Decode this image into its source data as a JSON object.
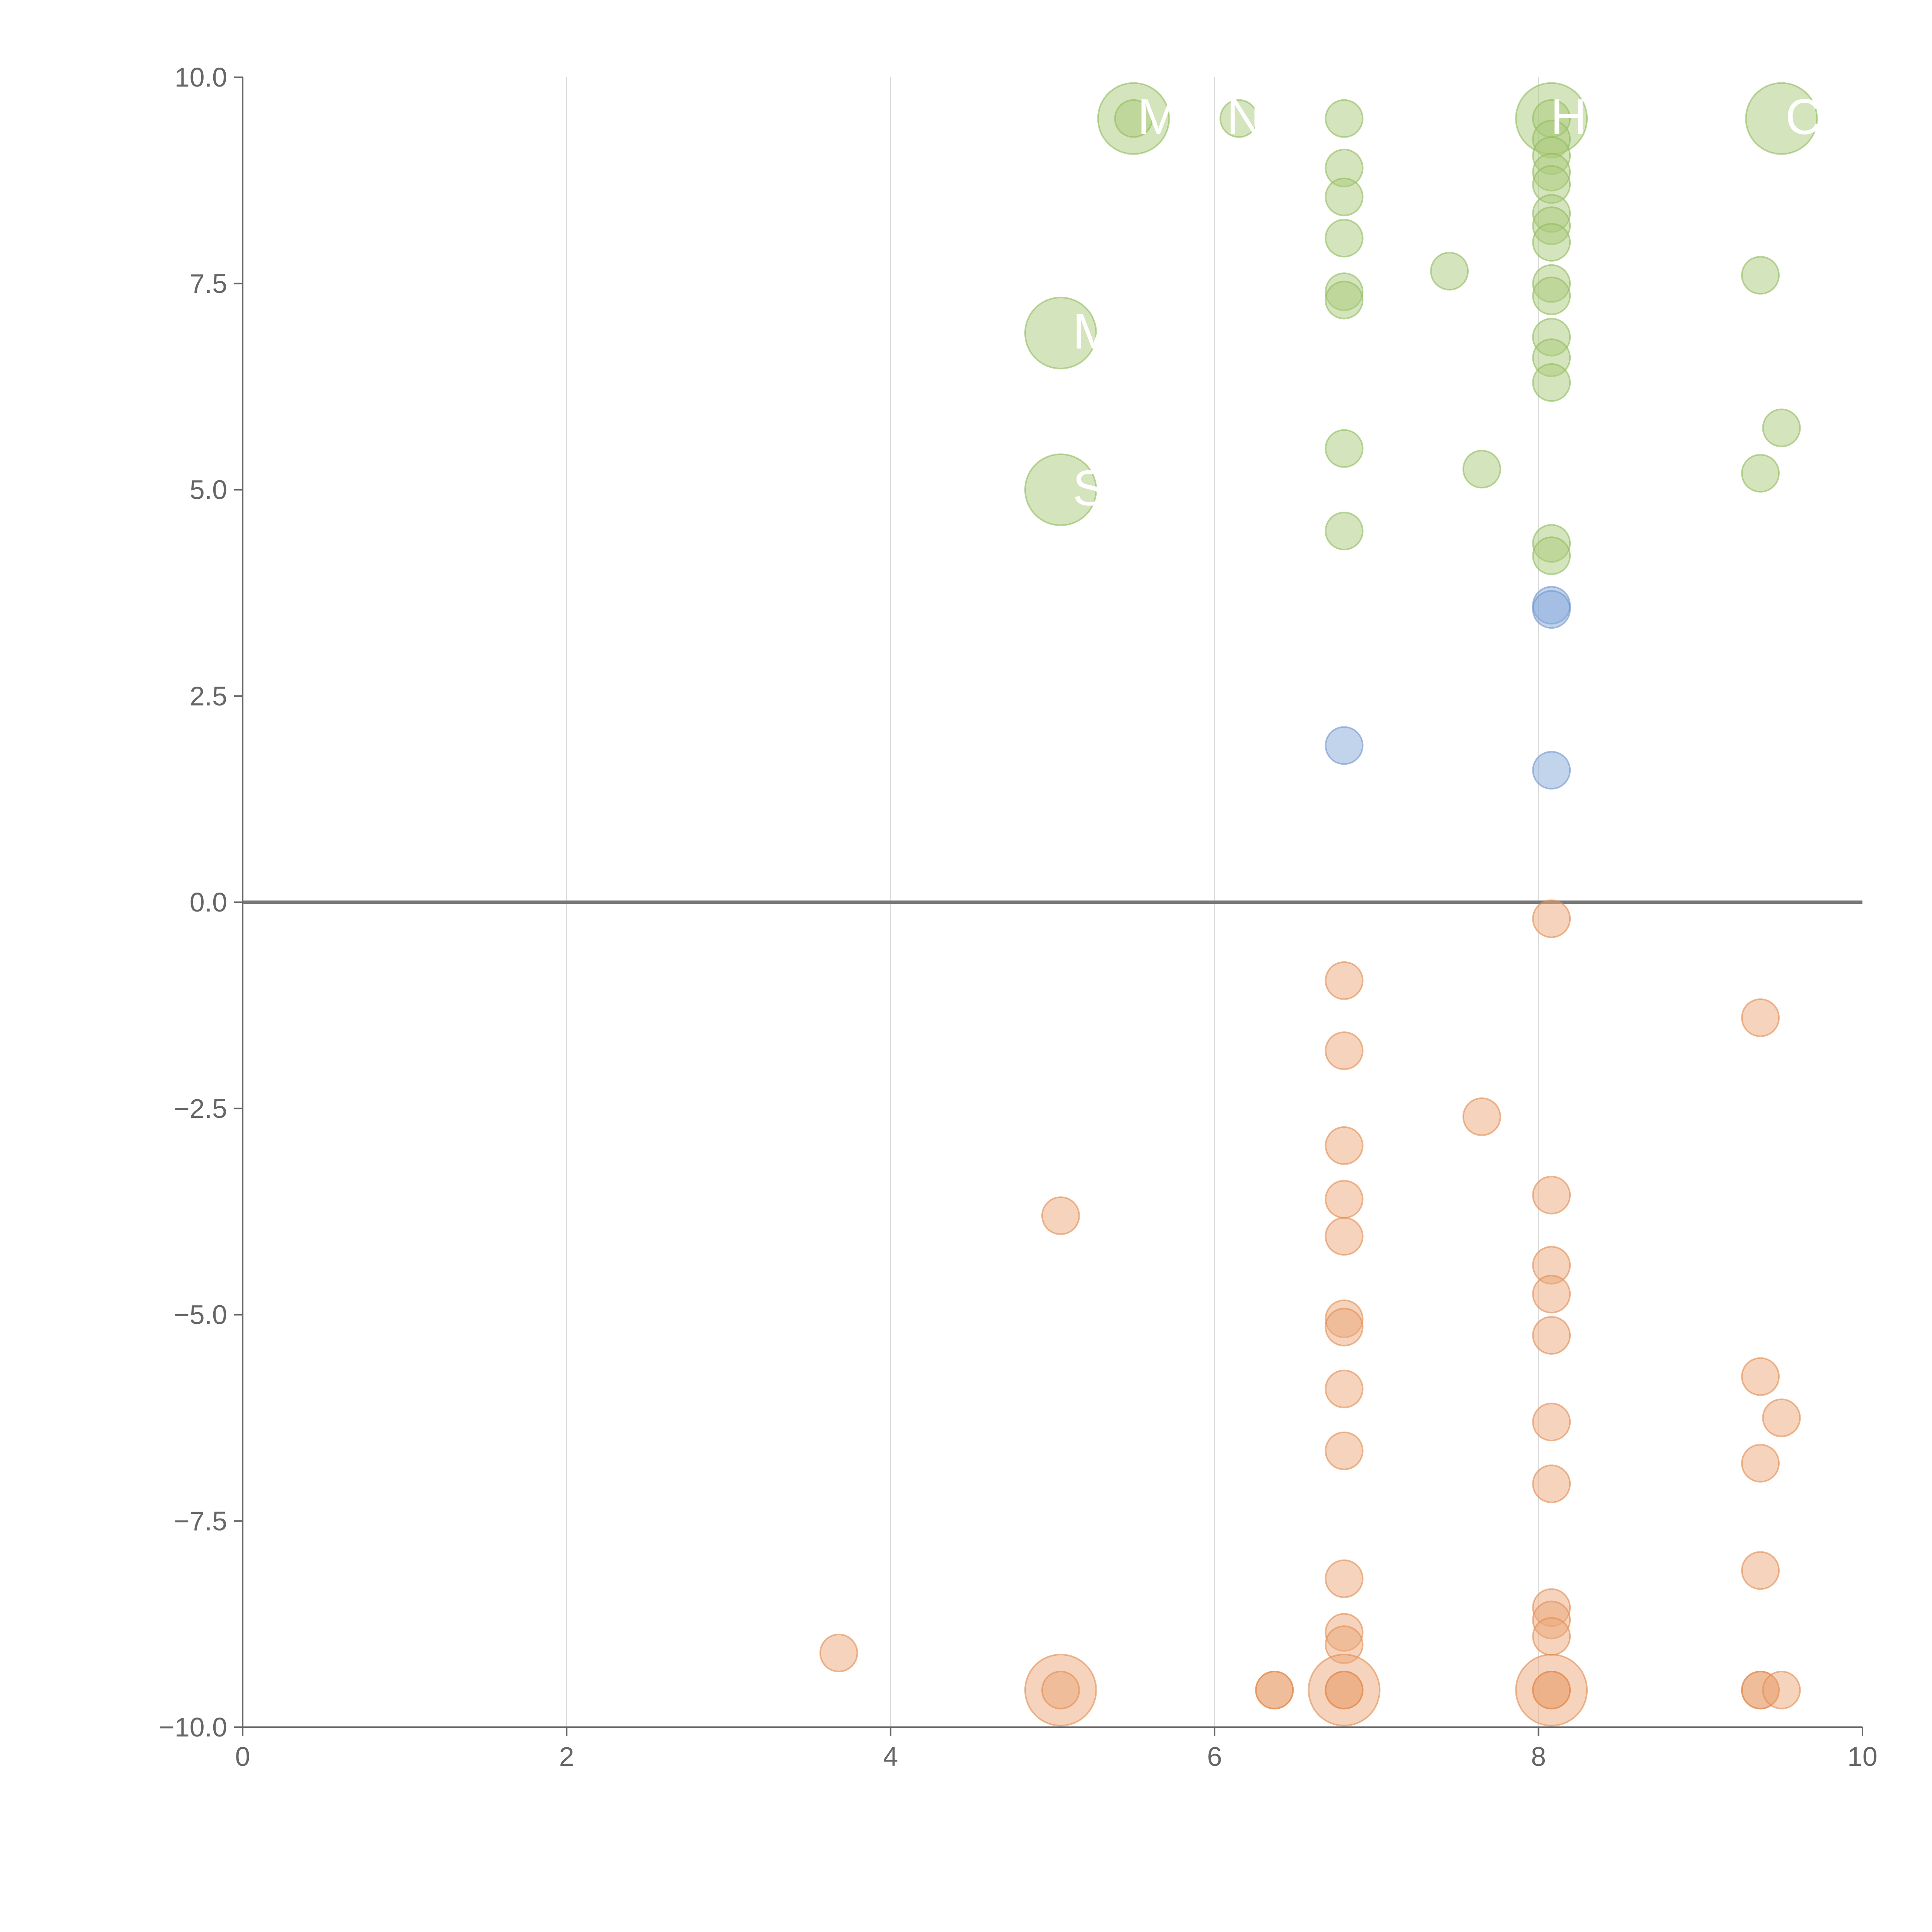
{
  "chart_data": {
    "type": "scatter",
    "title": "",
    "xlabel": "",
    "ylabel": "",
    "xlim": [
      0,
      10
    ],
    "ylim": [
      -10,
      10
    ],
    "x_ticks": [
      "0",
      "2",
      "4",
      "6",
      "8",
      "10"
    ],
    "y_ticks": [
      "10.0",
      "7.5",
      "5.0",
      "2.5",
      "0.0",
      "−2.5",
      "−5.0",
      "−7.5",
      "−10.0"
    ],
    "gridlines_x": [
      2,
      4,
      6,
      8
    ],
    "zero_line_y": 0,
    "colors": {
      "green": "#a9c97a",
      "green_stroke": "#8fba5c",
      "blue": "#86a9d9",
      "blue_stroke": "#6f95cc",
      "orange": "#eca77a",
      "orange_stroke": "#e28a4e",
      "dark_orange": "#de7a2e",
      "dark_green": "#8fb54f"
    },
    "series": [
      {
        "name": "green",
        "points": [
          {
            "x": 5.5,
            "y": 9.5,
            "size": "large"
          },
          {
            "x": 5.5,
            "y": 9.5,
            "size": "small"
          },
          {
            "x": 6.15,
            "y": 9.5,
            "size": "small"
          },
          {
            "x": 6.8,
            "y": 9.5,
            "size": "small"
          },
          {
            "x": 6.8,
            "y": 8.9,
            "size": "small"
          },
          {
            "x": 6.8,
            "y": 8.55,
            "size": "small"
          },
          {
            "x": 6.8,
            "y": 8.05,
            "size": "small"
          },
          {
            "x": 6.8,
            "y": 7.4,
            "size": "small"
          },
          {
            "x": 6.8,
            "y": 7.3,
            "size": "small"
          },
          {
            "x": 6.8,
            "y": 5.5,
            "size": "small"
          },
          {
            "x": 6.8,
            "y": 4.5,
            "size": "small"
          },
          {
            "x": 7.45,
            "y": 7.65,
            "size": "small"
          },
          {
            "x": 7.65,
            "y": 5.25,
            "size": "small"
          },
          {
            "x": 8.08,
            "y": 9.5,
            "size": "large"
          },
          {
            "x": 8.08,
            "y": 9.5,
            "size": "small"
          },
          {
            "x": 8.08,
            "y": 9.25,
            "size": "small"
          },
          {
            "x": 8.08,
            "y": 9.05,
            "size": "small"
          },
          {
            "x": 8.08,
            "y": 8.85,
            "size": "small"
          },
          {
            "x": 8.08,
            "y": 8.7,
            "size": "small"
          },
          {
            "x": 8.08,
            "y": 8.35,
            "size": "small"
          },
          {
            "x": 8.08,
            "y": 8.2,
            "size": "small"
          },
          {
            "x": 8.08,
            "y": 8.0,
            "size": "small"
          },
          {
            "x": 8.08,
            "y": 7.5,
            "size": "small"
          },
          {
            "x": 8.08,
            "y": 7.35,
            "size": "small"
          },
          {
            "x": 8.08,
            "y": 6.85,
            "size": "small"
          },
          {
            "x": 8.08,
            "y": 6.6,
            "size": "small"
          },
          {
            "x": 8.08,
            "y": 6.3,
            "size": "small"
          },
          {
            "x": 8.08,
            "y": 4.35,
            "size": "small"
          },
          {
            "x": 8.08,
            "y": 4.2,
            "size": "small"
          },
          {
            "x": 9.37,
            "y": 7.6,
            "size": "small"
          },
          {
            "x": 9.37,
            "y": 5.2,
            "size": "small"
          },
          {
            "x": 9.5,
            "y": 5.75,
            "size": "small"
          },
          {
            "x": 9.5,
            "y": 9.5,
            "size": "large"
          },
          {
            "x": 5.05,
            "y": 6.9,
            "size": "large"
          },
          {
            "x": 5.05,
            "y": 5.0,
            "size": "large"
          }
        ]
      },
      {
        "name": "blue",
        "points": [
          {
            "x": 6.8,
            "y": 1.9,
            "size": "small"
          },
          {
            "x": 8.08,
            "y": 3.6,
            "size": "small"
          },
          {
            "x": 8.08,
            "y": 3.55,
            "size": "small"
          },
          {
            "x": 8.08,
            "y": 1.6,
            "size": "small"
          }
        ]
      },
      {
        "name": "orange",
        "points": [
          {
            "x": 3.68,
            "y": -9.1,
            "size": "small"
          },
          {
            "x": 5.05,
            "y": -3.8,
            "size": "small"
          },
          {
            "x": 5.05,
            "y": -9.55,
            "size": "large"
          },
          {
            "x": 5.05,
            "y": -9.55,
            "size": "small"
          },
          {
            "x": 6.37,
            "y": -9.55,
            "size": "small"
          },
          {
            "x": 6.37,
            "y": -9.55,
            "size": "small"
          },
          {
            "x": 6.8,
            "y": -0.95,
            "size": "small"
          },
          {
            "x": 6.8,
            "y": -1.8,
            "size": "small"
          },
          {
            "x": 6.8,
            "y": -2.95,
            "size": "small"
          },
          {
            "x": 6.8,
            "y": -3.6,
            "size": "small"
          },
          {
            "x": 6.8,
            "y": -4.05,
            "size": "small"
          },
          {
            "x": 6.8,
            "y": -5.05,
            "size": "small"
          },
          {
            "x": 6.8,
            "y": -5.15,
            "size": "small"
          },
          {
            "x": 6.8,
            "y": -5.9,
            "size": "small"
          },
          {
            "x": 6.8,
            "y": -6.65,
            "size": "small"
          },
          {
            "x": 6.8,
            "y": -8.2,
            "size": "small"
          },
          {
            "x": 6.8,
            "y": -8.85,
            "size": "small"
          },
          {
            "x": 6.8,
            "y": -9.0,
            "size": "small"
          },
          {
            "x": 6.8,
            "y": -9.55,
            "size": "large"
          },
          {
            "x": 6.8,
            "y": -9.55,
            "size": "small"
          },
          {
            "x": 6.8,
            "y": -9.55,
            "size": "small"
          },
          {
            "x": 7.65,
            "y": -2.6,
            "size": "small"
          },
          {
            "x": 8.08,
            "y": -0.2,
            "size": "small"
          },
          {
            "x": 8.08,
            "y": -3.55,
            "size": "small"
          },
          {
            "x": 8.08,
            "y": -4.4,
            "size": "small"
          },
          {
            "x": 8.08,
            "y": -4.75,
            "size": "small"
          },
          {
            "x": 8.08,
            "y": -5.25,
            "size": "small"
          },
          {
            "x": 8.08,
            "y": -6.3,
            "size": "small"
          },
          {
            "x": 8.08,
            "y": -7.05,
            "size": "small"
          },
          {
            "x": 8.08,
            "y": -8.55,
            "size": "small"
          },
          {
            "x": 8.08,
            "y": -8.7,
            "size": "small"
          },
          {
            "x": 8.08,
            "y": -8.9,
            "size": "small"
          },
          {
            "x": 8.08,
            "y": -9.55,
            "size": "large"
          },
          {
            "x": 8.08,
            "y": -9.55,
            "size": "small"
          },
          {
            "x": 8.08,
            "y": -9.55,
            "size": "small"
          },
          {
            "x": 9.37,
            "y": -1.4,
            "size": "small"
          },
          {
            "x": 9.37,
            "y": -5.75,
            "size": "small"
          },
          {
            "x": 9.37,
            "y": -6.8,
            "size": "small"
          },
          {
            "x": 9.37,
            "y": -8.1,
            "size": "small"
          },
          {
            "x": 9.37,
            "y": -9.55,
            "size": "small"
          },
          {
            "x": 9.37,
            "y": -9.55,
            "size": "small"
          },
          {
            "x": 9.5,
            "y": -6.25,
            "size": "small"
          },
          {
            "x": 9.5,
            "y": -9.55,
            "size": "small"
          }
        ]
      }
    ],
    "annotations": [
      {
        "text": "M",
        "x": 5.5,
        "y": 9.5
      },
      {
        "text": "N",
        "x": 6.05,
        "y": 9.5
      },
      {
        "text": "H",
        "x": 8.05,
        "y": 9.5
      },
      {
        "text": "CE",
        "x": 9.5,
        "y": 9.5
      },
      {
        "text": "M",
        "x": 5.1,
        "y": 6.9
      },
      {
        "text": "S",
        "x": 5.1,
        "y": 5.0
      }
    ]
  }
}
